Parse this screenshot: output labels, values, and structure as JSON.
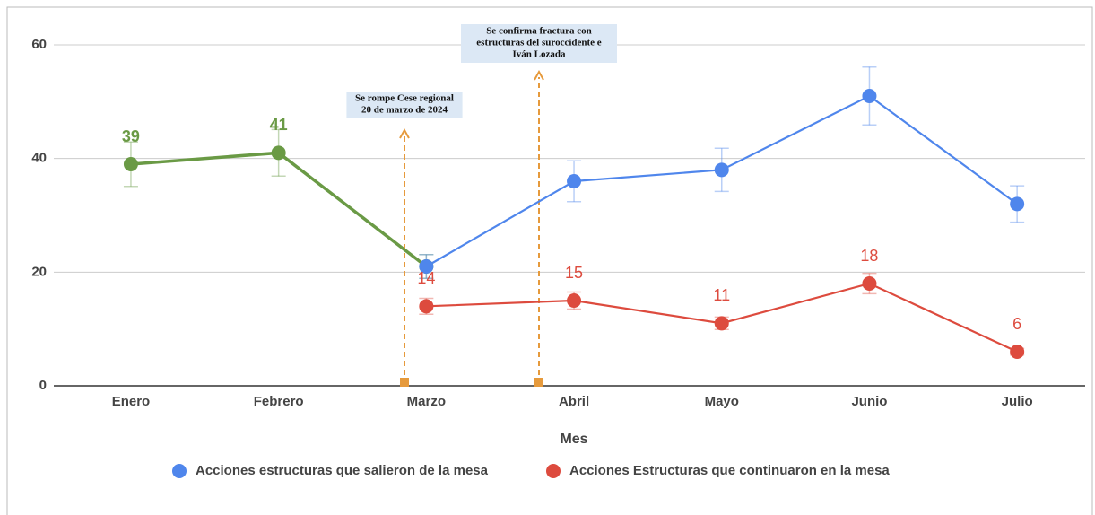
{
  "chart_data": {
    "type": "line",
    "categories": [
      "Enero",
      "Febrero",
      "Marzo",
      "Abril",
      "Mayo",
      "Junio",
      "Julio"
    ],
    "series": [
      {
        "color": "#6a9a45",
        "values": [
          39,
          41,
          21,
          null,
          null,
          null,
          null
        ],
        "errors": [
          3.9,
          4.1,
          2.1,
          null,
          null,
          null,
          null
        ]
      },
      {
        "name": "Acciones estructuras que salieron de la mesa",
        "color": "#4f86ec",
        "values": [
          null,
          null,
          21,
          36,
          38,
          51,
          32
        ],
        "errors": [
          null,
          null,
          2.1,
          3.6,
          3.8,
          5.1,
          3.2
        ]
      },
      {
        "name": "Acciones Estructuras que continuaron en la mesa",
        "color": "#dd4b3e",
        "values": [
          null,
          null,
          14,
          15,
          11,
          18,
          6
        ],
        "errors": [
          null,
          null,
          1.4,
          1.5,
          1.1,
          1.8,
          0.6
        ]
      }
    ],
    "xlabel": "Mes",
    "ylim": [
      0,
      60
    ],
    "yticks": [
      0,
      20,
      40,
      60
    ],
    "grid": true,
    "annotations": [
      {
        "lines": [
          "Se rompe Cese regional",
          "20 de marzo de 2024"
        ]
      },
      {
        "lines": [
          "Se confirma fractura con",
          "estructuras del suroccidente e",
          "Iván Lozada"
        ]
      }
    ],
    "annotation_color": "#e69a3c",
    "legend": "bottom"
  }
}
